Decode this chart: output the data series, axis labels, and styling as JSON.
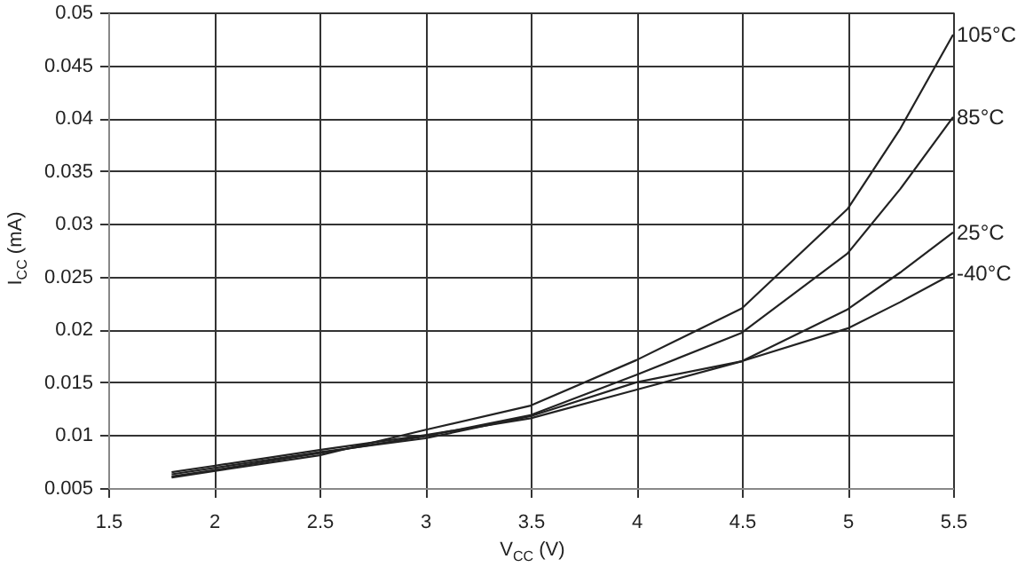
{
  "chart_data": {
    "type": "line",
    "xlabel": "V$_{CC}$ (V)",
    "ylabel": "I$_{CC}$ (mA)",
    "x": [
      1.8,
      2,
      2.5,
      3,
      3.5,
      4,
      4.5,
      5,
      5.25,
      5.5
    ],
    "series": [
      {
        "name": "105°C",
        "color": "#222222",
        "values": [
          0.006,
          0.0066,
          0.0081,
          0.0105,
          0.0128,
          0.0171,
          0.022,
          0.0314,
          0.039,
          0.0479
        ]
      },
      {
        "name": "85°C",
        "color": "#222222",
        "values": [
          0.0061,
          0.0067,
          0.0083,
          0.0099,
          0.0119,
          0.0157,
          0.0197,
          0.0272,
          0.0333,
          0.0401
        ]
      },
      {
        "name": "25°C",
        "color": "#222222",
        "values": [
          0.0063,
          0.0069,
          0.0084,
          0.0097,
          0.0118,
          0.015,
          0.017,
          0.0219,
          0.0254,
          0.0292
        ]
      },
      {
        "name": "-40°C",
        "color": "#222222",
        "values": [
          0.0065,
          0.0071,
          0.0086,
          0.01,
          0.0116,
          0.0143,
          0.017,
          0.0201,
          0.0226,
          0.0253
        ]
      }
    ],
    "xlim": [
      1.5,
      5.5
    ],
    "xticks": [
      1.5,
      2,
      2.5,
      3,
      3.5,
      4,
      4.5,
      5,
      5.5
    ],
    "ylim": [
      0.005,
      0.05
    ],
    "yticks": [
      0.005,
      0.01,
      0.015,
      0.02,
      0.025,
      0.03,
      0.035,
      0.04,
      0.045,
      0.05
    ],
    "grid": true,
    "line_style": "solid"
  }
}
